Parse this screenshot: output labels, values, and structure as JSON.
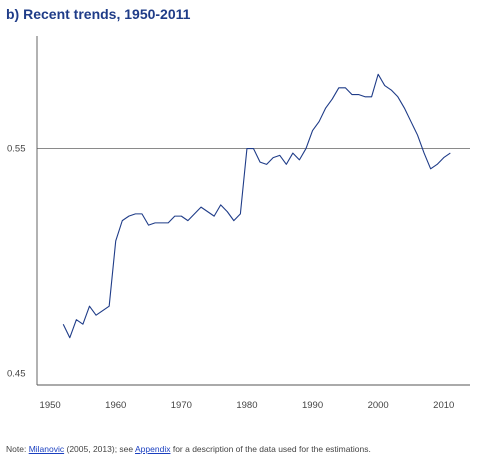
{
  "chart_data": {
    "type": "line",
    "title": "b) Recent trends, 1950-2011",
    "xlabel": "",
    "ylabel": "",
    "xlim": [
      1948,
      2014
    ],
    "ylim": [
      0.445,
      0.6
    ],
    "x_ticks": [
      1950,
      1960,
      1970,
      1980,
      1990,
      2000,
      2010
    ],
    "x_tick_labels": [
      "1950",
      "1960",
      "1970",
      "1980",
      "1990",
      "2000",
      "2010"
    ],
    "y_ticks": [
      0.45,
      0.55
    ],
    "y_tick_labels": [
      "0.45",
      "0.55"
    ],
    "reference_line": 0.55,
    "line_color": "#1f3c88",
    "series": [
      {
        "x": [
          1952,
          1953,
          1954,
          1955,
          1956,
          1957,
          1958,
          1959,
          1960,
          1961,
          1962,
          1963,
          1964,
          1965,
          1966,
          1967,
          1968,
          1969,
          1970,
          1971,
          1972,
          1973,
          1974,
          1975,
          1976,
          1977,
          1978,
          1979,
          1980,
          1981,
          1982,
          1983,
          1984,
          1985,
          1986,
          1987,
          1988,
          1989,
          1990,
          1991,
          1992,
          1993,
          1994,
          1995,
          1996,
          1997,
          1998,
          1999,
          2000,
          2001,
          2002,
          2003,
          2004,
          2005,
          2006,
          2007,
          2008,
          2009,
          2010,
          2011
        ],
        "values": [
          0.472,
          0.466,
          0.474,
          0.472,
          0.48,
          0.476,
          0.478,
          0.48,
          0.509,
          0.518,
          0.52,
          0.521,
          0.521,
          0.516,
          0.517,
          0.517,
          0.517,
          0.52,
          0.52,
          0.518,
          0.521,
          0.524,
          0.522,
          0.52,
          0.525,
          0.522,
          0.518,
          0.521,
          0.55,
          0.55,
          0.544,
          0.543,
          0.546,
          0.547,
          0.543,
          0.548,
          0.545,
          0.55,
          0.558,
          0.562,
          0.568,
          0.572,
          0.577,
          0.577,
          0.574,
          0.574,
          0.573,
          0.573,
          0.583,
          0.578,
          0.576,
          0.573,
          0.568,
          0.562,
          0.556,
          0.548,
          0.541,
          0.543,
          0.546,
          0.548
        ]
      }
    ]
  },
  "note": {
    "prefix": "Note: ",
    "link1": "Milanovic",
    "middle": " (2005, 2013); see ",
    "link2": "Appendix",
    "suffix": " for a description of the data used for the estimations."
  }
}
